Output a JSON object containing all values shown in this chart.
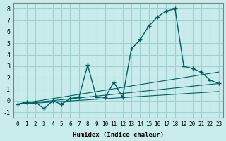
{
  "xlabel": "Humidex (Indice chaleur)",
  "ylabel": "",
  "background_color": "#c8ecec",
  "grid_color": "#a0d0d0",
  "line_color": "#006060",
  "xlim": [
    -0.5,
    23.5
  ],
  "ylim": [
    -1.5,
    8.5
  ],
  "xticks": [
    0,
    1,
    2,
    3,
    4,
    5,
    6,
    7,
    8,
    9,
    10,
    11,
    12,
    13,
    14,
    15,
    16,
    17,
    18,
    19,
    20,
    21,
    22,
    23
  ],
  "yticks": [
    -1,
    0,
    1,
    2,
    3,
    4,
    5,
    6,
    7,
    8
  ],
  "series": [
    [
      0,
      -0.3
    ],
    [
      1,
      -0.1
    ],
    [
      2,
      -0.1
    ],
    [
      3,
      -0.7
    ],
    [
      4,
      0.0
    ],
    [
      5,
      -0.3
    ],
    [
      6,
      0.2
    ],
    [
      7,
      0.3
    ],
    [
      8,
      3.1
    ],
    [
      9,
      0.3
    ],
    [
      10,
      0.3
    ],
    [
      11,
      1.6
    ],
    [
      12,
      0.3
    ],
    [
      13,
      4.5
    ],
    [
      14,
      5.3
    ],
    [
      15,
      6.5
    ],
    [
      16,
      7.3
    ],
    [
      17,
      7.8
    ],
    [
      18,
      8.0
    ],
    [
      19,
      3.0
    ],
    [
      20,
      2.8
    ],
    [
      21,
      2.5
    ],
    [
      22,
      1.8
    ],
    [
      23,
      1.5
    ]
  ],
  "line2": [
    [
      0,
      -0.3
    ],
    [
      23,
      2.5
    ]
  ],
  "line3": [
    [
      0,
      -0.3
    ],
    [
      23,
      1.5
    ]
  ],
  "line4": [
    [
      0,
      -0.3
    ],
    [
      23,
      0.8
    ]
  ]
}
